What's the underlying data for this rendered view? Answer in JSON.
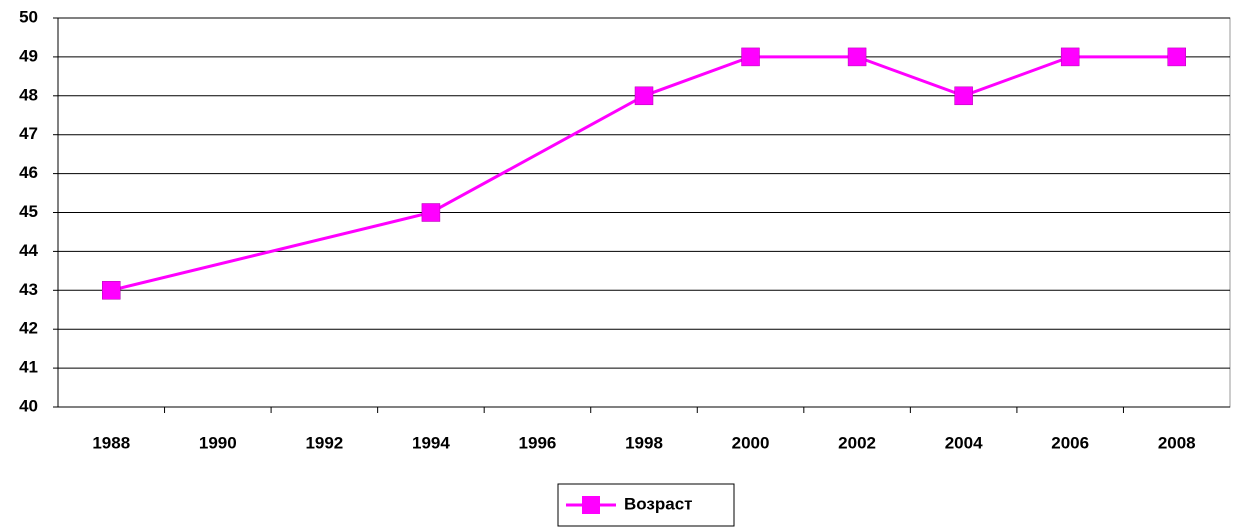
{
  "chart_data": {
    "type": "line",
    "x": [
      1988,
      1994,
      1998,
      2000,
      2002,
      2004,
      2006,
      2008
    ],
    "series": [
      {
        "name": "Возраст",
        "color": "#FF00FF",
        "values": [
          43,
          45,
          48,
          49,
          49,
          48,
          49,
          49
        ]
      }
    ],
    "xlim": [
      1987,
      2009
    ],
    "xticks": [
      1988,
      1990,
      1992,
      1994,
      1996,
      1998,
      2000,
      2002,
      2004,
      2006,
      2008
    ],
    "ylim": [
      40,
      50
    ],
    "yticks": [
      40,
      41,
      42,
      43,
      44,
      45,
      46,
      47,
      48,
      49,
      50
    ],
    "grid": true,
    "legend": "bottom"
  }
}
